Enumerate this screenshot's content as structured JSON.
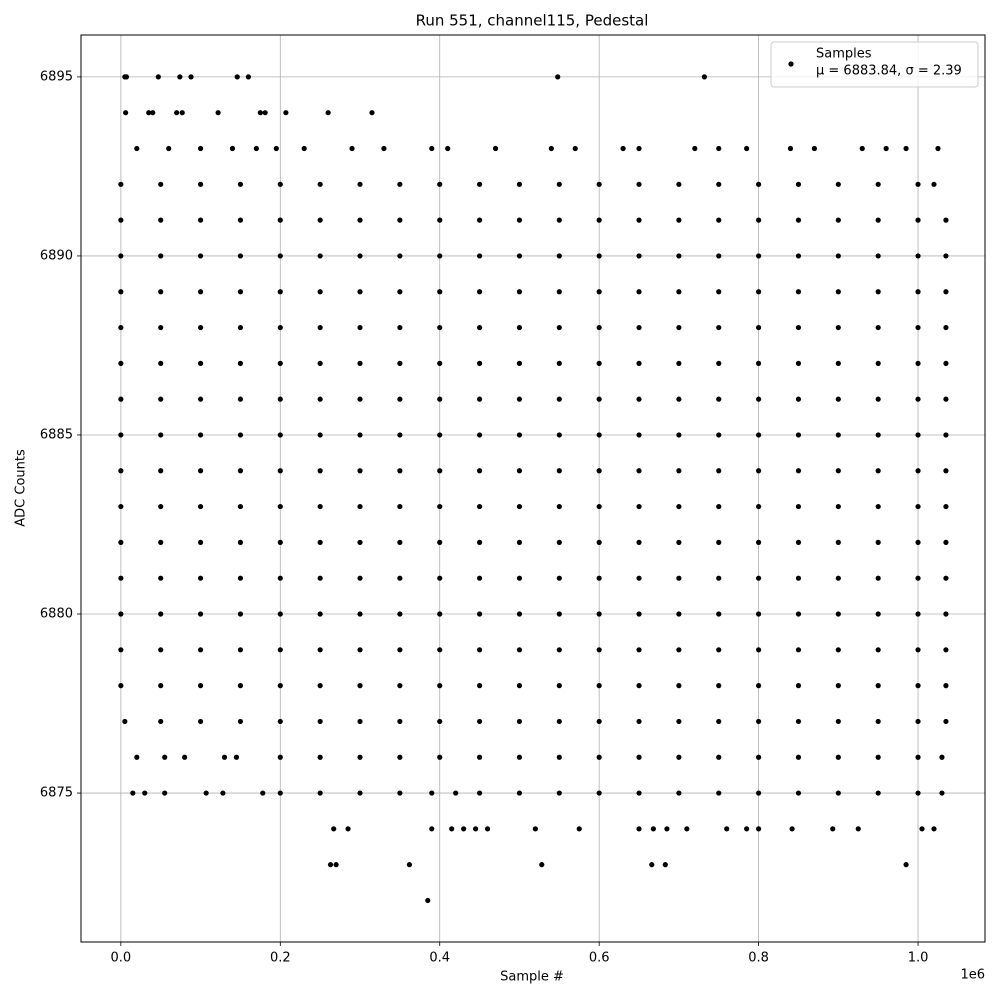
{
  "chart_data": {
    "type": "scatter",
    "title": "Run 551, channel115, Pedestal",
    "x_label": "Sample #",
    "y_label": "ADC Counts",
    "x_offset_label": "1e6",
    "annotation": "μ = 6883.84, σ = 2.39",
    "legend": "upper right",
    "grid": true,
    "xlim": [
      -50000,
      1084000
    ],
    "ylim": [
      6870.84,
      6896.17
    ],
    "xticks": [
      {
        "value": 0,
        "label": "0.0"
      },
      {
        "value": 200000,
        "label": "0.2"
      },
      {
        "value": 400000,
        "label": "0.4"
      },
      {
        "value": 600000,
        "label": "0.6"
      },
      {
        "value": 800000,
        "label": "0.8"
      },
      {
        "value": 1000000,
        "label": "1.0"
      }
    ],
    "yticks": [
      6875,
      6880,
      6885,
      6890,
      6895
    ],
    "series": [
      {
        "name": "Samples",
        "color": "#000000",
        "x": [
          5000,
          7000,
          47000,
          74000,
          88000,
          146000,
          160000,
          548000,
          732000,
          6000,
          35000,
          40000,
          70000,
          77000,
          122000,
          175000,
          181000,
          207000,
          260000,
          315000,
          20000,
          60000,
          100000,
          140000,
          170000,
          195000,
          230000,
          290000,
          330000,
          390000,
          410000,
          470000,
          540000,
          570000,
          630000,
          650000,
          720000,
          750000,
          785000,
          840000,
          870000,
          930000,
          960000,
          985000,
          1025000,
          0,
          50000,
          100000,
          150000,
          200000,
          250000,
          300000,
          350000,
          400000,
          450000,
          500000,
          550000,
          600000,
          650000,
          700000,
          750000,
          800000,
          850000,
          900000,
          950000,
          1000000,
          1020000,
          0,
          50000,
          100000,
          150000,
          200000,
          250000,
          300000,
          350000,
          400000,
          450000,
          500000,
          550000,
          600000,
          650000,
          700000,
          750000,
          800000,
          850000,
          900000,
          950000,
          1000000,
          1035000,
          0,
          50000,
          100000,
          150000,
          200000,
          250000,
          300000,
          350000,
          400000,
          450000,
          500000,
          550000,
          600000,
          650000,
          700000,
          750000,
          800000,
          850000,
          900000,
          950000,
          1000000,
          1035000,
          0,
          50000,
          100000,
          150000,
          200000,
          250000,
          300000,
          350000,
          400000,
          450000,
          500000,
          550000,
          600000,
          650000,
          700000,
          750000,
          800000,
          850000,
          900000,
          950000,
          1000000,
          1035000,
          0,
          50000,
          100000,
          150000,
          200000,
          250000,
          300000,
          350000,
          400000,
          450000,
          500000,
          550000,
          600000,
          650000,
          700000,
          750000,
          800000,
          850000,
          900000,
          950000,
          1000000,
          1035000,
          0,
          50000,
          100000,
          150000,
          200000,
          250000,
          300000,
          350000,
          400000,
          450000,
          500000,
          550000,
          600000,
          650000,
          700000,
          750000,
          800000,
          850000,
          900000,
          950000,
          1000000,
          1035000,
          0,
          50000,
          100000,
          150000,
          200000,
          250000,
          300000,
          350000,
          400000,
          450000,
          500000,
          550000,
          600000,
          650000,
          700000,
          750000,
          800000,
          850000,
          900000,
          950000,
          1000000,
          1035000,
          0,
          50000,
          100000,
          150000,
          200000,
          250000,
          300000,
          350000,
          400000,
          450000,
          500000,
          550000,
          600000,
          650000,
          700000,
          750000,
          800000,
          850000,
          900000,
          950000,
          1000000,
          1035000,
          0,
          50000,
          100000,
          150000,
          200000,
          250000,
          300000,
          350000,
          400000,
          450000,
          500000,
          550000,
          600000,
          650000,
          700000,
          750000,
          800000,
          850000,
          900000,
          950000,
          1000000,
          1035000,
          0,
          50000,
          100000,
          150000,
          200000,
          250000,
          300000,
          350000,
          400000,
          450000,
          500000,
          550000,
          600000,
          650000,
          700000,
          750000,
          800000,
          850000,
          900000,
          950000,
          1000000,
          1035000,
          0,
          50000,
          100000,
          150000,
          200000,
          250000,
          300000,
          350000,
          400000,
          450000,
          500000,
          550000,
          600000,
          650000,
          700000,
          750000,
          800000,
          850000,
          900000,
          950000,
          1000000,
          1035000,
          0,
          50000,
          100000,
          150000,
          200000,
          250000,
          300000,
          350000,
          400000,
          450000,
          500000,
          550000,
          600000,
          650000,
          700000,
          750000,
          800000,
          850000,
          900000,
          950000,
          1000000,
          1035000,
          0,
          50000,
          100000,
          150000,
          200000,
          250000,
          300000,
          350000,
          400000,
          450000,
          500000,
          550000,
          600000,
          650000,
          700000,
          750000,
          800000,
          850000,
          900000,
          950000,
          1000000,
          1035000,
          0,
          50000,
          100000,
          150000,
          200000,
          250000,
          300000,
          350000,
          400000,
          450000,
          500000,
          550000,
          600000,
          650000,
          700000,
          750000,
          800000,
          850000,
          900000,
          950000,
          1000000,
          1035000,
          0,
          50000,
          100000,
          150000,
          200000,
          250000,
          300000,
          350000,
          400000,
          450000,
          500000,
          550000,
          600000,
          650000,
          700000,
          750000,
          800000,
          850000,
          900000,
          950000,
          1000000,
          1035000,
          5000,
          50000,
          100000,
          150000,
          200000,
          250000,
          300000,
          350000,
          400000,
          450000,
          500000,
          550000,
          600000,
          650000,
          700000,
          750000,
          800000,
          850000,
          900000,
          950000,
          1000000,
          1035000,
          20000,
          55000,
          80000,
          130000,
          145000,
          200000,
          250000,
          300000,
          350000,
          400000,
          450000,
          500000,
          550000,
          600000,
          650000,
          700000,
          750000,
          800000,
          850000,
          900000,
          950000,
          1000000,
          1030000,
          15000,
          30000,
          55000,
          107000,
          128000,
          178000,
          200000,
          250000,
          300000,
          350000,
          390000,
          420000,
          450000,
          500000,
          550000,
          600000,
          650000,
          700000,
          750000,
          800000,
          850000,
          900000,
          950000,
          1000000,
          1030000,
          267000,
          285000,
          390000,
          415000,
          430000,
          445000,
          460000,
          520000,
          575000,
          650000,
          668000,
          685000,
          710000,
          760000,
          785000,
          800000,
          842000,
          893000,
          925000,
          1005000,
          1020000,
          263000,
          270000,
          362000,
          528000,
          666000,
          683000,
          985000,
          385000
        ],
        "values": [
          6895,
          6895,
          6895,
          6895,
          6895,
          6895,
          6895,
          6895,
          6895,
          6894,
          6894,
          6894,
          6894,
          6894,
          6894,
          6894,
          6894,
          6894,
          6894,
          6894,
          6893,
          6893,
          6893,
          6893,
          6893,
          6893,
          6893,
          6893,
          6893,
          6893,
          6893,
          6893,
          6893,
          6893,
          6893,
          6893,
          6893,
          6893,
          6893,
          6893,
          6893,
          6893,
          6893,
          6893,
          6893,
          6892,
          6892,
          6892,
          6892,
          6892,
          6892,
          6892,
          6892,
          6892,
          6892,
          6892,
          6892,
          6892,
          6892,
          6892,
          6892,
          6892,
          6892,
          6892,
          6892,
          6892,
          6892,
          6891,
          6891,
          6891,
          6891,
          6891,
          6891,
          6891,
          6891,
          6891,
          6891,
          6891,
          6891,
          6891,
          6891,
          6891,
          6891,
          6891,
          6891,
          6891,
          6891,
          6891,
          6891,
          6890,
          6890,
          6890,
          6890,
          6890,
          6890,
          6890,
          6890,
          6890,
          6890,
          6890,
          6890,
          6890,
          6890,
          6890,
          6890,
          6890,
          6890,
          6890,
          6890,
          6890,
          6890,
          6889,
          6889,
          6889,
          6889,
          6889,
          6889,
          6889,
          6889,
          6889,
          6889,
          6889,
          6889,
          6889,
          6889,
          6889,
          6889,
          6889,
          6889,
          6889,
          6889,
          6889,
          6889,
          6888,
          6888,
          6888,
          6888,
          6888,
          6888,
          6888,
          6888,
          6888,
          6888,
          6888,
          6888,
          6888,
          6888,
          6888,
          6888,
          6888,
          6888,
          6888,
          6888,
          6888,
          6888,
          6887,
          6887,
          6887,
          6887,
          6887,
          6887,
          6887,
          6887,
          6887,
          6887,
          6887,
          6887,
          6887,
          6887,
          6887,
          6887,
          6887,
          6887,
          6887,
          6887,
          6887,
          6887,
          6886,
          6886,
          6886,
          6886,
          6886,
          6886,
          6886,
          6886,
          6886,
          6886,
          6886,
          6886,
          6886,
          6886,
          6886,
          6886,
          6886,
          6886,
          6886,
          6886,
          6886,
          6886,
          6885,
          6885,
          6885,
          6885,
          6885,
          6885,
          6885,
          6885,
          6885,
          6885,
          6885,
          6885,
          6885,
          6885,
          6885,
          6885,
          6885,
          6885,
          6885,
          6885,
          6885,
          6885,
          6884,
          6884,
          6884,
          6884,
          6884,
          6884,
          6884,
          6884,
          6884,
          6884,
          6884,
          6884,
          6884,
          6884,
          6884,
          6884,
          6884,
          6884,
          6884,
          6884,
          6884,
          6884,
          6883,
          6883,
          6883,
          6883,
          6883,
          6883,
          6883,
          6883,
          6883,
          6883,
          6883,
          6883,
          6883,
          6883,
          6883,
          6883,
          6883,
          6883,
          6883,
          6883,
          6883,
          6883,
          6882,
          6882,
          6882,
          6882,
          6882,
          6882,
          6882,
          6882,
          6882,
          6882,
          6882,
          6882,
          6882,
          6882,
          6882,
          6882,
          6882,
          6882,
          6882,
          6882,
          6882,
          6882,
          6881,
          6881,
          6881,
          6881,
          6881,
          6881,
          6881,
          6881,
          6881,
          6881,
          6881,
          6881,
          6881,
          6881,
          6881,
          6881,
          6881,
          6881,
          6881,
          6881,
          6881,
          6881,
          6880,
          6880,
          6880,
          6880,
          6880,
          6880,
          6880,
          6880,
          6880,
          6880,
          6880,
          6880,
          6880,
          6880,
          6880,
          6880,
          6880,
          6880,
          6880,
          6880,
          6880,
          6880,
          6879,
          6879,
          6879,
          6879,
          6879,
          6879,
          6879,
          6879,
          6879,
          6879,
          6879,
          6879,
          6879,
          6879,
          6879,
          6879,
          6879,
          6879,
          6879,
          6879,
          6879,
          6879,
          6878,
          6878,
          6878,
          6878,
          6878,
          6878,
          6878,
          6878,
          6878,
          6878,
          6878,
          6878,
          6878,
          6878,
          6878,
          6878,
          6878,
          6878,
          6878,
          6878,
          6878,
          6878,
          6877,
          6877,
          6877,
          6877,
          6877,
          6877,
          6877,
          6877,
          6877,
          6877,
          6877,
          6877,
          6877,
          6877,
          6877,
          6877,
          6877,
          6877,
          6877,
          6877,
          6877,
          6877,
          6876,
          6876,
          6876,
          6876,
          6876,
          6876,
          6876,
          6876,
          6876,
          6876,
          6876,
          6876,
          6876,
          6876,
          6876,
          6876,
          6876,
          6876,
          6876,
          6876,
          6876,
          6876,
          6876,
          6875,
          6875,
          6875,
          6875,
          6875,
          6875,
          6875,
          6875,
          6875,
          6875,
          6875,
          6875,
          6875,
          6875,
          6875,
          6875,
          6875,
          6875,
          6875,
          6875,
          6875,
          6875,
          6875,
          6875,
          6875,
          6874,
          6874,
          6874,
          6874,
          6874,
          6874,
          6874,
          6874,
          6874,
          6874,
          6874,
          6874,
          6874,
          6874,
          6874,
          6874,
          6874,
          6874,
          6874,
          6874,
          6874,
          6873,
          6873,
          6873,
          6873,
          6873,
          6873,
          6873,
          6872
        ]
      }
    ]
  }
}
